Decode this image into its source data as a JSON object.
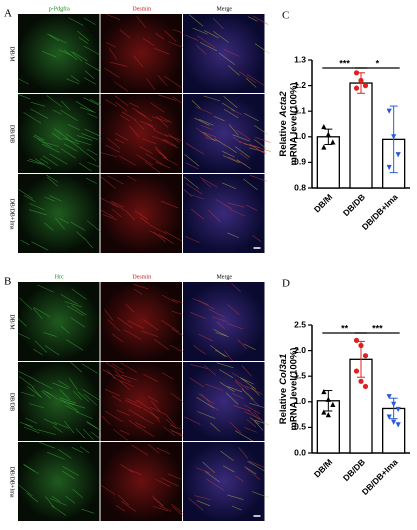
{
  "panel_a": {
    "label": "A",
    "columns": [
      "p-Pdgfra",
      "Desmin",
      "Merge"
    ],
    "rows": [
      "DB/M",
      "DB/DB",
      "DB/DB+Ima"
    ]
  },
  "panel_b": {
    "label": "B",
    "columns": [
      "Hrc",
      "Desmin",
      "Merge"
    ],
    "rows": [
      "DB/M",
      "DB/DB",
      "DB/DB+Ima"
    ]
  },
  "chart_data": [
    {
      "type": "bar",
      "panel_label": "C",
      "ylabel_prefix": "Relative",
      "ylabel_gene": "Acta2",
      "ylabel_suffix": "mRNA level(100%)",
      "categories": [
        "DB/M",
        "DB/DB",
        "DB/DB+Ima"
      ],
      "values": [
        1.0,
        1.21,
        0.99
      ],
      "errors": [
        0.03,
        0.04,
        0.13
      ],
      "points": [
        [
          1.04,
          1.01,
          0.98,
          0.96
        ],
        [
          1.25,
          1.22,
          1.2,
          1.19
        ],
        [
          1.1,
          1.0,
          0.93,
          0.88
        ]
      ],
      "point_colors": [
        "#000000",
        "#e02020",
        "#2a5bd7"
      ],
      "point_shapes": [
        "triangle",
        "circle",
        "triangle-down"
      ],
      "ylim": [
        0.8,
        1.3
      ],
      "yticks": [
        0.8,
        0.9,
        {
          "value": 1.0,
          "label": "1.0"
        },
        1.1,
        1.2,
        1.3
      ],
      "annotations": [
        {
          "text": "***",
          "from": 0,
          "to": 1
        },
        {
          "text": "*",
          "from": 1,
          "to": 2
        }
      ]
    },
    {
      "type": "bar",
      "panel_label": "D",
      "ylabel_prefix": "Relative",
      "ylabel_gene": "Col3a1",
      "ylabel_suffix": "mRNA level(100%)",
      "categories": [
        "DB/M",
        "DB/DB",
        "DB/DB+Ima"
      ],
      "values": [
        1.02,
        1.83,
        0.87
      ],
      "errors": [
        0.2,
        0.35,
        0.2
      ],
      "points": [
        [
          1.2,
          1.05,
          0.95,
          0.8,
          0.75
        ],
        [
          2.2,
          2.1,
          1.9,
          1.6,
          1.4,
          1.3
        ],
        [
          1.1,
          0.95,
          0.85,
          0.7,
          0.6,
          0.55
        ]
      ],
      "point_colors": [
        "#000000",
        "#e02020",
        "#2a5bd7"
      ],
      "point_shapes": [
        "triangle",
        "circle",
        "triangle-down"
      ],
      "ylim": [
        0,
        2.5
      ],
      "yticks": [
        {
          "value": 0,
          "label": "0.0"
        },
        0.5,
        {
          "value": 1,
          "label": "1.0"
        },
        1.5,
        {
          "value": 2,
          "label": "2.0"
        },
        2.5
      ],
      "annotations": [
        {
          "text": "**",
          "from": 0,
          "to": 1
        },
        {
          "text": "***",
          "from": 1,
          "to": 2
        }
      ]
    }
  ]
}
